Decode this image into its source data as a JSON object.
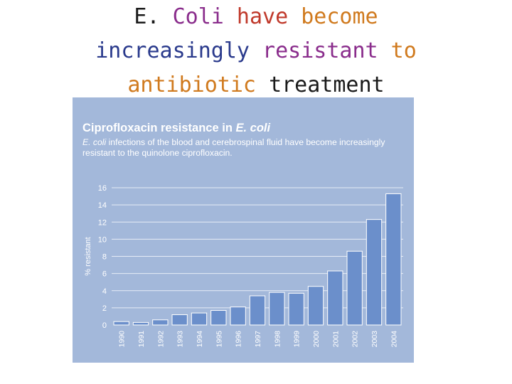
{
  "slide": {
    "title_words": [
      {
        "text": "E.",
        "color": "#1a1a1a"
      },
      {
        "text": "Coli",
        "color": "#8a2d8c"
      },
      {
        "text": "have",
        "color": "#c0392b"
      },
      {
        "text": "become",
        "color": "#d07a1e"
      },
      {
        "text": "increasingly",
        "color": "#2a3a8c"
      },
      {
        "text": "resistant",
        "color": "#8a2d8c"
      },
      {
        "text": "to",
        "color": "#d07a1e"
      },
      {
        "text": "antibiotic",
        "color": "#d07a1e"
      },
      {
        "text": "treatment",
        "color": "#1a1a1a"
      }
    ]
  },
  "chart_data": {
    "type": "bar",
    "title_main": "Ciprofloxacin resistance in ",
    "title_italic": "E. coli",
    "subtitle_italic": "E. coli",
    "subtitle_rest": " infections of the blood and cerebrospinal fluid have become increasingly resistant to the quinolone ciprofloxacin.",
    "ylabel": "% resistant",
    "xlabel": "",
    "ylim": [
      0,
      16
    ],
    "yticks": [
      0,
      2,
      4,
      6,
      8,
      10,
      12,
      14,
      16
    ],
    "grid": true,
    "categories": [
      "1990",
      "1991",
      "1992",
      "1993",
      "1994",
      "1995",
      "1996",
      "1997",
      "1998",
      "1999",
      "2000",
      "2001",
      "2002",
      "2003",
      "2004"
    ],
    "values": [
      0.4,
      0.3,
      0.6,
      1.2,
      1.4,
      1.7,
      2.1,
      3.4,
      3.8,
      3.7,
      4.5,
      6.3,
      8.6,
      12.3,
      15.3
    ],
    "colors": {
      "panel": "#a3b8da",
      "bar": "#6b8fcb",
      "bar_edge": "#ffffff",
      "grid": "#e6ecf6",
      "axis_text": "#ffffff"
    }
  }
}
